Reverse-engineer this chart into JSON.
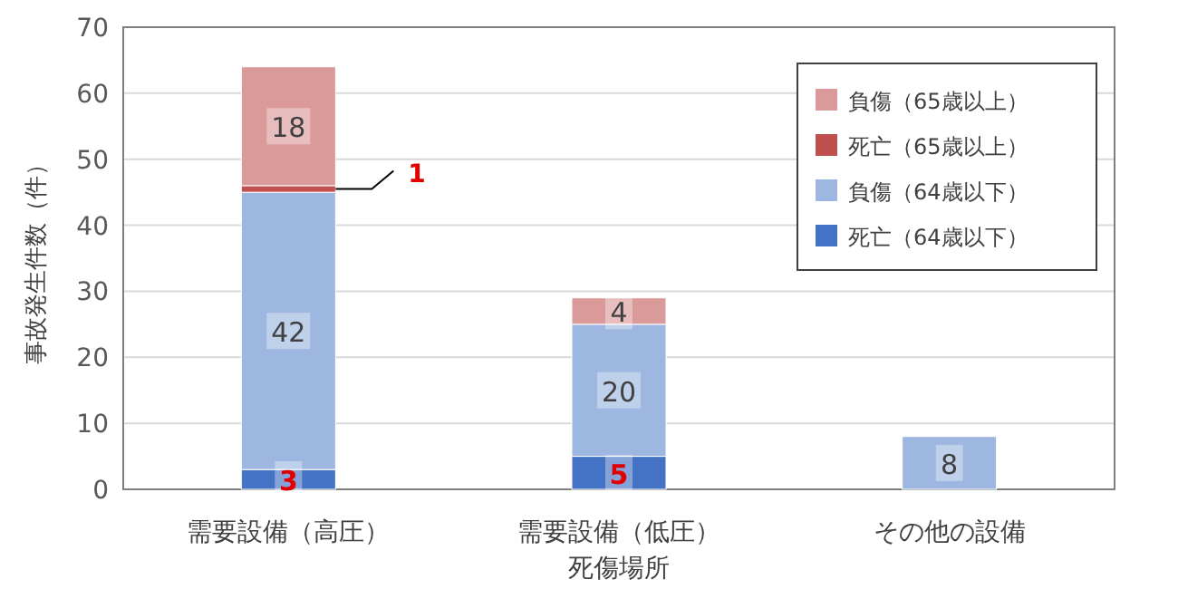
{
  "chart_data": {
    "type": "bar",
    "stacked": true,
    "xlabel": "死傷場所",
    "ylabel": "事故発生件数（件）",
    "categories": [
      "需要設備（高圧）",
      "需要設備（低圧）",
      "その他の設備"
    ],
    "ylim": [
      0,
      70
    ],
    "yticks": [
      0,
      10,
      20,
      30,
      40,
      50,
      60,
      70
    ],
    "grid": "y",
    "legend": "top right",
    "series": [
      {
        "name": "死亡（64歳以下）",
        "color": "#4472c4",
        "values": [
          3,
          5,
          0
        ],
        "value_labels": [
          "3",
          "5",
          null
        ]
      },
      {
        "name": "負傷（64歳以下）",
        "color": "#9db7e0",
        "values": [
          42,
          20,
          8
        ],
        "value_labels": [
          "42",
          "20",
          "8"
        ]
      },
      {
        "name": "死亡（65歳以上）",
        "color": "#c0504d",
        "values": [
          1,
          0,
          0
        ],
        "value_labels": [
          "1",
          null,
          null
        ]
      },
      {
        "name": "負傷（65歳以上）",
        "color": "#db9a9a",
        "values": [
          18,
          4,
          0
        ],
        "value_labels": [
          "18",
          "4",
          null
        ]
      }
    ]
  }
}
